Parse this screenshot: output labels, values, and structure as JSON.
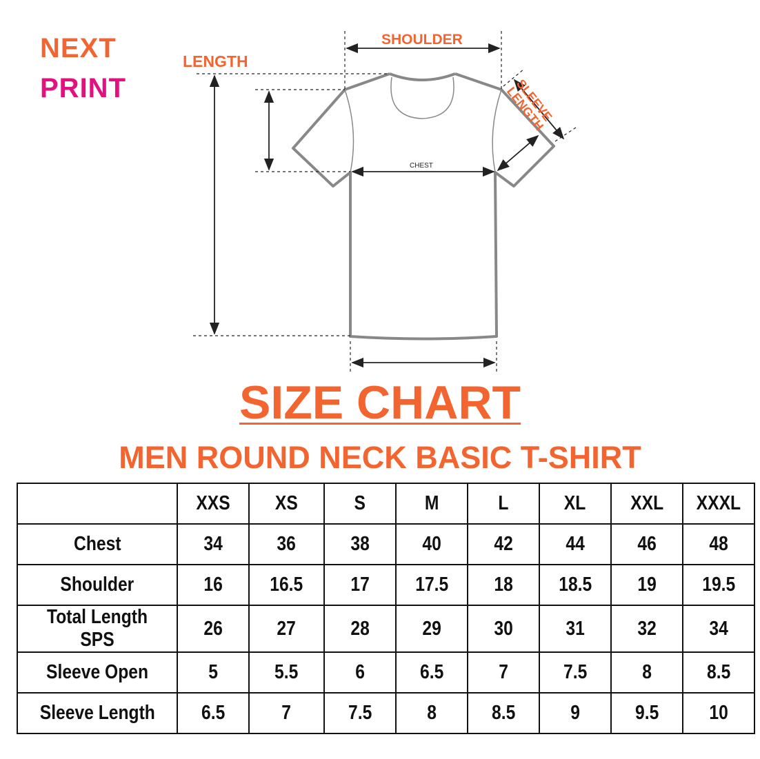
{
  "logo": {
    "line1": "NEXT",
    "line2": "PRINT",
    "colors": {
      "orange": "#f26530",
      "pink": "#e3117f"
    }
  },
  "diagram": {
    "labels": {
      "shoulder": "SHOULDER",
      "length": "LENGTH",
      "sleeve_length": "SLEEVE LENGTH",
      "chest": "CHEST"
    }
  },
  "title": "SIZE CHART",
  "subtitle": "MEN ROUND NECK BASIC T-SHIRT",
  "table": {
    "headers": [
      "",
      "XXS",
      "XS",
      "S",
      "M",
      "L",
      "XL",
      "XXL",
      "XXXL"
    ],
    "rows": [
      {
        "label": "Chest",
        "values": [
          "34",
          "36",
          "38",
          "40",
          "42",
          "44",
          "46",
          "48"
        ]
      },
      {
        "label": "Shoulder",
        "values": [
          "16",
          "16.5",
          "17",
          "17.5",
          "18",
          "18.5",
          "19",
          "19.5"
        ]
      },
      {
        "label": "Total Length SPS",
        "values": [
          "26",
          "27",
          "28",
          "29",
          "30",
          "31",
          "32",
          "34"
        ]
      },
      {
        "label": "Sleeve Open",
        "values": [
          "5",
          "5.5",
          "6",
          "6.5",
          "7",
          "7.5",
          "8",
          "8.5"
        ]
      },
      {
        "label": "Sleeve Length",
        "values": [
          "6.5",
          "7",
          "7.5",
          "8",
          "8.5",
          "9",
          "9.5",
          "10"
        ]
      }
    ]
  }
}
